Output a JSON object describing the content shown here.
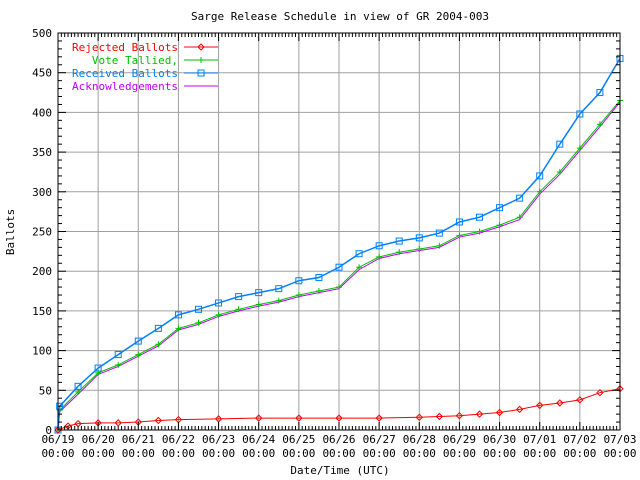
{
  "chart_data": {
    "type": "line",
    "title": "Sarge Release Schedule in view of GR 2004-003",
    "xlabel": "Date/Time (UTC)",
    "ylabel": "Ballots",
    "xlim": [
      "06/19 00:00",
      "07/03 00:00"
    ],
    "ylim": [
      0,
      500
    ],
    "yticks": [
      0,
      50,
      100,
      150,
      200,
      250,
      300,
      350,
      400,
      450,
      500
    ],
    "xticks": [
      [
        "06/19",
        "00:00"
      ],
      [
        "06/20",
        "00:00"
      ],
      [
        "06/21",
        "00:00"
      ],
      [
        "06/22",
        "00:00"
      ],
      [
        "06/23",
        "00:00"
      ],
      [
        "06/24",
        "00:00"
      ],
      [
        "06/25",
        "00:00"
      ],
      [
        "06/26",
        "00:00"
      ],
      [
        "06/27",
        "00:00"
      ],
      [
        "06/28",
        "00:00"
      ],
      [
        "06/29",
        "00:00"
      ],
      [
        "06/30",
        "00:00"
      ],
      [
        "07/01",
        "00:00"
      ],
      [
        "07/02",
        "00:00"
      ],
      [
        "07/03",
        "00:00"
      ]
    ],
    "grid": true,
    "legend_position": "top-left",
    "series": [
      {
        "name": "Rejected Ballots",
        "color": "#ff0000",
        "marker": "diamond",
        "x": [
          "06/19 00:00",
          "06/19 06:00",
          "06/19 12:00",
          "06/20 00:00",
          "06/20 12:00",
          "06/21 00:00",
          "06/21 12:00",
          "06/22 00:00",
          "06/23 00:00",
          "06/24 00:00",
          "06/25 00:00",
          "06/26 00:00",
          "06/27 00:00",
          "06/28 00:00",
          "06/28 12:00",
          "06/29 00:00",
          "06/29 12:00",
          "06/30 00:00",
          "06/30 12:00",
          "07/01 00:00",
          "07/01 12:00",
          "07/02 00:00",
          "07/02 12:00",
          "07/03 00:00"
        ],
        "y": [
          0,
          5,
          8,
          9,
          9,
          10,
          12,
          13,
          14,
          15,
          15,
          15,
          15,
          16,
          17,
          18,
          20,
          22,
          26,
          31,
          34,
          38,
          47,
          52
        ]
      },
      {
        "name": "Vote Tallied,",
        "color": "#00c000",
        "marker": "plus",
        "x": [
          "06/19 00:00",
          "06/19 01:00",
          "06/19 12:00",
          "06/20 00:00",
          "06/20 12:00",
          "06/21 00:00",
          "06/21 12:00",
          "06/22 00:00",
          "06/22 12:00",
          "06/23 00:00",
          "06/23 12:00",
          "06/24 00:00",
          "06/24 12:00",
          "06/25 00:00",
          "06/25 12:00",
          "06/26 00:00",
          "06/26 12:00",
          "06/27 00:00",
          "06/27 12:00",
          "06/28 00:00",
          "06/28 12:00",
          "06/29 00:00",
          "06/29 12:00",
          "06/30 00:00",
          "06/30 12:00",
          "07/01 00:00",
          "07/01 12:00",
          "07/02 00:00",
          "07/02 12:00",
          "07/03 00:00"
        ],
        "y": [
          0,
          25,
          48,
          72,
          82,
          95,
          108,
          128,
          135,
          145,
          152,
          158,
          163,
          170,
          175,
          180,
          205,
          218,
          224,
          228,
          232,
          245,
          250,
          258,
          268,
          300,
          325,
          355,
          385,
          415
        ]
      },
      {
        "name": "Received Ballots",
        "color": "#0080ff",
        "marker": "square",
        "x": [
          "06/19 00:00",
          "06/19 01:00",
          "06/19 12:00",
          "06/20 00:00",
          "06/20 12:00",
          "06/21 00:00",
          "06/21 12:00",
          "06/22 00:00",
          "06/22 12:00",
          "06/23 00:00",
          "06/23 12:00",
          "06/24 00:00",
          "06/24 12:00",
          "06/25 00:00",
          "06/25 12:00",
          "06/26 00:00",
          "06/26 12:00",
          "06/27 00:00",
          "06/27 12:00",
          "06/28 00:00",
          "06/28 12:00",
          "06/29 00:00",
          "06/29 12:00",
          "06/30 00:00",
          "06/30 12:00",
          "07/01 00:00",
          "07/01 12:00",
          "07/02 00:00",
          "07/02 12:00",
          "07/03 00:00"
        ],
        "y": [
          0,
          30,
          55,
          78,
          95,
          112,
          128,
          145,
          152,
          160,
          168,
          173,
          178,
          188,
          192,
          205,
          222,
          232,
          238,
          242,
          248,
          262,
          268,
          280,
          292,
          320,
          360,
          398,
          425,
          468
        ]
      },
      {
        "name": "Acknowledgements",
        "color": "#c000ff",
        "marker": "none",
        "x": [
          "06/19 00:00",
          "06/19 01:00",
          "06/19 12:00",
          "06/20 00:00",
          "06/20 12:00",
          "06/21 00:00",
          "06/21 12:00",
          "06/22 00:00",
          "06/22 12:00",
          "06/23 00:00",
          "06/23 12:00",
          "06/24 00:00",
          "06/24 12:00",
          "06/25 00:00",
          "06/25 12:00",
          "06/26 00:00",
          "06/26 12:00",
          "06/27 00:00",
          "06/27 12:00",
          "06/28 00:00",
          "06/28 12:00",
          "06/29 00:00",
          "06/29 12:00",
          "06/30 00:00",
          "06/30 12:00",
          "07/01 00:00",
          "07/01 12:00",
          "07/02 00:00",
          "07/02 12:00",
          "07/03 00:00"
        ],
        "y": [
          0,
          23,
          45,
          70,
          80,
          93,
          106,
          126,
          133,
          143,
          150,
          156,
          161,
          168,
          173,
          178,
          202,
          216,
          222,
          226,
          230,
          243,
          248,
          256,
          265,
          297,
          322,
          352,
          382,
          413
        ]
      }
    ]
  }
}
